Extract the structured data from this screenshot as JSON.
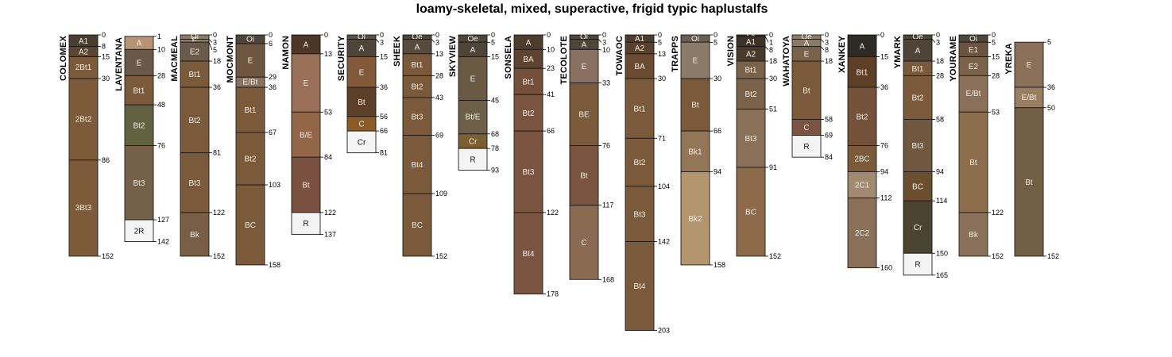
{
  "chart_data": {
    "type": "soil-profile-sketch",
    "title": "loamy-skeletal, mixed, superactive, frigid typic haplustalfs",
    "depth_units": "cm",
    "depth_max": 205,
    "profiles": [
      {
        "name": "COLOMEX",
        "bottom": 152,
        "horizons": [
          {
            "name": "A1",
            "top": 0,
            "bottom": 8,
            "color": "#4a3c2e"
          },
          {
            "name": "A2",
            "top": 8,
            "bottom": 15,
            "color": "#5a4632"
          },
          {
            "name": "2Bt1",
            "top": 15,
            "bottom": 30,
            "color": "#7a5a3a"
          },
          {
            "name": "2Bt2",
            "top": 30,
            "bottom": 86,
            "color": "#7d5a3a"
          },
          {
            "name": "3Bt3",
            "top": 86,
            "bottom": 152,
            "color": "#7d5a3a"
          }
        ]
      },
      {
        "name": "LAVENTANA",
        "bottom": 142,
        "horizons": [
          {
            "name": "A",
            "top": 1,
            "bottom": 10,
            "color": "#b89472"
          },
          {
            "name": "E",
            "top": 10,
            "bottom": 28,
            "color": "#6a5848"
          },
          {
            "name": "Bt1",
            "top": 28,
            "bottom": 48,
            "color": "#7a5a3a"
          },
          {
            "name": "Bt2",
            "top": 48,
            "bottom": 76,
            "color": "#626240"
          },
          {
            "name": "Bt3",
            "top": 76,
            "bottom": 127,
            "color": "#75604a"
          },
          {
            "name": "2R",
            "top": 127,
            "bottom": 142,
            "color": "#f4f4f4"
          }
        ]
      },
      {
        "name": "MACMEAL",
        "bottom": 152,
        "horizons": [
          {
            "name": "Oi",
            "top": 0,
            "bottom": 3,
            "color": "#8a7a68"
          },
          {
            "name": "E",
            "top": 3,
            "bottom": 5,
            "color": "#8a7a68"
          },
          {
            "name": "E2",
            "top": 5,
            "bottom": 18,
            "color": "#6a5a4a"
          },
          {
            "name": "Bt1",
            "top": 18,
            "bottom": 36,
            "color": "#7a5a3a"
          },
          {
            "name": "Bt2",
            "top": 36,
            "bottom": 81,
            "color": "#7a5a3a"
          },
          {
            "name": "Bt3",
            "top": 81,
            "bottom": 122,
            "color": "#7a5a3a"
          },
          {
            "name": "Bk",
            "top": 122,
            "bottom": 152,
            "color": "#775e44"
          }
        ]
      },
      {
        "name": "MOCMONT",
        "bottom": 158,
        "horizons": [
          {
            "name": "Oi",
            "top": 0,
            "bottom": 6,
            "color": "#4e4438"
          },
          {
            "name": "E",
            "top": 6,
            "bottom": 29,
            "color": "#6e5640"
          },
          {
            "name": "E/Bt",
            "top": 29,
            "bottom": 36,
            "color": "#8a7260"
          },
          {
            "name": "Bt1",
            "top": 36,
            "bottom": 67,
            "color": "#7a5a3a"
          },
          {
            "name": "Bt2",
            "top": 67,
            "bottom": 103,
            "color": "#7a5a3a"
          },
          {
            "name": "BC",
            "top": 103,
            "bottom": 158,
            "color": "#7a5a3a"
          }
        ]
      },
      {
        "name": "NAMON",
        "bottom": 137,
        "horizons": [
          {
            "name": "A",
            "top": 0,
            "bottom": 13,
            "color": "#4e3626"
          },
          {
            "name": "E",
            "top": 13,
            "bottom": 53,
            "color": "#9a7058"
          },
          {
            "name": "B/E",
            "top": 53,
            "bottom": 84,
            "color": "#946648"
          },
          {
            "name": "Bt",
            "top": 84,
            "bottom": 122,
            "color": "#7a5040"
          },
          {
            "name": "R",
            "top": 122,
            "bottom": 137,
            "color": "#f4f4f4"
          }
        ]
      },
      {
        "name": "SECURITY",
        "bottom": 81,
        "horizons": [
          {
            "name": "Oi",
            "top": 0,
            "bottom": 3,
            "color": "#58504a"
          },
          {
            "name": "A",
            "top": 3,
            "bottom": 15,
            "color": "#4e4438"
          },
          {
            "name": "E",
            "top": 15,
            "bottom": 36,
            "color": "#825a3a"
          },
          {
            "name": "Bt",
            "top": 36,
            "bottom": 56,
            "color": "#5e4028"
          },
          {
            "name": "C",
            "top": 56,
            "bottom": 66,
            "color": "#8a5a28"
          },
          {
            "name": "Cr",
            "top": 66,
            "bottom": 81,
            "color": "#f4f4f4"
          }
        ]
      },
      {
        "name": "SHEEK",
        "bottom": 152,
        "horizons": [
          {
            "name": "Oe",
            "top": 0,
            "bottom": 3,
            "color": "#4e4438"
          },
          {
            "name": "A",
            "top": 3,
            "bottom": 13,
            "color": "#584a3c"
          },
          {
            "name": "Bt1",
            "top": 13,
            "bottom": 28,
            "color": "#7a5a3a"
          },
          {
            "name": "Bt2",
            "top": 28,
            "bottom": 43,
            "color": "#7a5a3a"
          },
          {
            "name": "Bt3",
            "top": 43,
            "bottom": 69,
            "color": "#7a5a3a"
          },
          {
            "name": "Bt4",
            "top": 69,
            "bottom": 109,
            "color": "#7a5a3a"
          },
          {
            "name": "BC",
            "top": 109,
            "bottom": 152,
            "color": "#7a5a3a"
          }
        ]
      },
      {
        "name": "SKYVIEW",
        "bottom": 93,
        "horizons": [
          {
            "name": "Oe",
            "top": 0,
            "bottom": 5,
            "color": "#4e4438"
          },
          {
            "name": "A",
            "top": 5,
            "bottom": 15,
            "color": "#4e4438"
          },
          {
            "name": "E",
            "top": 15,
            "bottom": 45,
            "color": "#6a5a44"
          },
          {
            "name": "Bt/E",
            "top": 45,
            "bottom": 68,
            "color": "#6e6048"
          },
          {
            "name": "Cr",
            "top": 68,
            "bottom": 78,
            "color": "#7a6030"
          },
          {
            "name": "R",
            "top": 78,
            "bottom": 93,
            "color": "#f4f4f4"
          }
        ]
      },
      {
        "name": "SONSELA",
        "bottom": 178,
        "horizons": [
          {
            "name": "A",
            "top": 0,
            "bottom": 10,
            "color": "#4e3c2c"
          },
          {
            "name": "BA",
            "top": 10,
            "bottom": 23,
            "color": "#5e4430"
          },
          {
            "name": "Bt1",
            "top": 23,
            "bottom": 41,
            "color": "#74503a"
          },
          {
            "name": "Bt2",
            "top": 41,
            "bottom": 66,
            "color": "#7a5440"
          },
          {
            "name": "Bt3",
            "top": 66,
            "bottom": 122,
            "color": "#7a5440"
          },
          {
            "name": "Bt4",
            "top": 122,
            "bottom": 178,
            "color": "#7a5440"
          }
        ]
      },
      {
        "name": "TECOLOTE",
        "bottom": 168,
        "horizons": [
          {
            "name": "Oi",
            "top": 0,
            "bottom": 3,
            "color": "#4e4438"
          },
          {
            "name": "A",
            "top": 3,
            "bottom": 10,
            "color": "#4e4438"
          },
          {
            "name": "E",
            "top": 10,
            "bottom": 33,
            "color": "#8a7060"
          },
          {
            "name": "BE",
            "top": 33,
            "bottom": 76,
            "color": "#7a5a3a"
          },
          {
            "name": "Bt",
            "top": 76,
            "bottom": 117,
            "color": "#7a5440"
          },
          {
            "name": "C",
            "top": 117,
            "bottom": 168,
            "color": "#8a6a50"
          }
        ]
      },
      {
        "name": "TOWAOC",
        "bottom": 203,
        "horizons": [
          {
            "name": "A1",
            "top": 0,
            "bottom": 5,
            "color": "#4e3c2c"
          },
          {
            "name": "A2",
            "top": 5,
            "bottom": 13,
            "color": "#58422e"
          },
          {
            "name": "BA",
            "top": 13,
            "bottom": 30,
            "color": "#6a4a30"
          },
          {
            "name": "Bt1",
            "top": 30,
            "bottom": 71,
            "color": "#7a5a3a"
          },
          {
            "name": "Bt2",
            "top": 71,
            "bottom": 104,
            "color": "#7a5a3a"
          },
          {
            "name": "Bt3",
            "top": 104,
            "bottom": 142,
            "color": "#7a5a3a"
          },
          {
            "name": "Bt4",
            "top": 142,
            "bottom": 203,
            "color": "#7a5a3a"
          }
        ]
      },
      {
        "name": "TRAPPS",
        "bottom": 158,
        "horizons": [
          {
            "name": "Oi",
            "top": 0,
            "bottom": 5,
            "color": "#6a5e52"
          },
          {
            "name": "E",
            "top": 5,
            "bottom": 30,
            "color": "#8a7a68"
          },
          {
            "name": "Bt",
            "top": 30,
            "bottom": 66,
            "color": "#7a5a3a"
          },
          {
            "name": "Bk1",
            "top": 66,
            "bottom": 94,
            "color": "#937658"
          },
          {
            "name": "Bk2",
            "top": 94,
            "bottom": 158,
            "color": "#b4966e"
          }
        ]
      },
      {
        "name": "VISION",
        "bottom": 152,
        "horizons": [
          {
            "name": "Oi",
            "top": 0,
            "bottom": 1,
            "color": "#3e3228"
          },
          {
            "name": "A1",
            "top": 1,
            "bottom": 8,
            "color": "#3e3228"
          },
          {
            "name": "A2",
            "top": 8,
            "bottom": 18,
            "color": "#4a3a2c"
          },
          {
            "name": "Bt1",
            "top": 18,
            "bottom": 30,
            "color": "#7a624a"
          },
          {
            "name": "Bt2",
            "top": 30,
            "bottom": 51,
            "color": "#7a624a"
          },
          {
            "name": "Bt3",
            "top": 51,
            "bottom": 91,
            "color": "#8a7058"
          },
          {
            "name": "BC",
            "top": 91,
            "bottom": 152,
            "color": "#8c6a4a"
          }
        ]
      },
      {
        "name": "WAHATOYA",
        "bottom": 84,
        "horizons": [
          {
            "name": "Oe",
            "top": 0,
            "bottom": 3,
            "color": "#8a7a68"
          },
          {
            "name": "A",
            "top": 3,
            "bottom": 8,
            "color": "#8a7a68"
          },
          {
            "name": "E",
            "top": 8,
            "bottom": 18,
            "color": "#7a624a"
          },
          {
            "name": "Bt",
            "top": 18,
            "bottom": 58,
            "color": "#7a5a3a"
          },
          {
            "name": "C",
            "top": 58,
            "bottom": 69,
            "color": "#7a5440"
          },
          {
            "name": "R",
            "top": 69,
            "bottom": 84,
            "color": "#f4f4f4"
          }
        ]
      },
      {
        "name": "XANKEY",
        "bottom": 160,
        "horizons": [
          {
            "name": "A",
            "top": 0,
            "bottom": 15,
            "color": "#2e2a26"
          },
          {
            "name": "Bt1",
            "top": 15,
            "bottom": 36,
            "color": "#5e3e24"
          },
          {
            "name": "Bt2",
            "top": 36,
            "bottom": 76,
            "color": "#74523a"
          },
          {
            "name": "2BC",
            "top": 76,
            "bottom": 94,
            "color": "#7a5a3a"
          },
          {
            "name": "2C1",
            "top": 94,
            "bottom": 112,
            "color": "#a08a72"
          },
          {
            "name": "2C2",
            "top": 112,
            "bottom": 160,
            "color": "#8a7058"
          }
        ]
      },
      {
        "name": "YMARK",
        "bottom": 165,
        "horizons": [
          {
            "name": "Oe",
            "top": 0,
            "bottom": 3,
            "color": "#4e4438"
          },
          {
            "name": "A",
            "top": 3,
            "bottom": 18,
            "color": "#4e4438"
          },
          {
            "name": "Bt1",
            "top": 18,
            "bottom": 28,
            "color": "#7a5a3a"
          },
          {
            "name": "Bt2",
            "top": 28,
            "bottom": 58,
            "color": "#7a5a3a"
          },
          {
            "name": "Bt3",
            "top": 58,
            "bottom": 94,
            "color": "#705840"
          },
          {
            "name": "BC",
            "top": 94,
            "bottom": 114,
            "color": "#6a4e2e"
          },
          {
            "name": "Cr",
            "top": 114,
            "bottom": 150,
            "color": "#4a4430"
          },
          {
            "name": "R",
            "top": 150,
            "bottom": 165,
            "color": "#f4f4f4"
          }
        ]
      },
      {
        "name": "YOURAME",
        "bottom": 152,
        "horizons": [
          {
            "name": "Oi",
            "top": 0,
            "bottom": 5,
            "color": "#4e4438"
          },
          {
            "name": "E1",
            "top": 5,
            "bottom": 15,
            "color": "#6a5440"
          },
          {
            "name": "E2",
            "top": 15,
            "bottom": 28,
            "color": "#7a624a"
          },
          {
            "name": "E/Bt",
            "top": 28,
            "bottom": 53,
            "color": "#8a7058"
          },
          {
            "name": "Bt",
            "top": 53,
            "bottom": 122,
            "color": "#8c6e4c"
          },
          {
            "name": "Bk",
            "top": 122,
            "bottom": 152,
            "color": "#8a7058"
          }
        ]
      },
      {
        "name": "YREKA",
        "bottom": 152,
        "horizons": [
          {
            "name": "E",
            "top": 5,
            "bottom": 36,
            "color": "#8a7058"
          },
          {
            "name": "E/Bt",
            "top": 36,
            "bottom": 50,
            "color": "#9a7e62"
          },
          {
            "name": "Bt",
            "top": 50,
            "bottom": 152,
            "color": "#735e46"
          }
        ]
      }
    ]
  }
}
